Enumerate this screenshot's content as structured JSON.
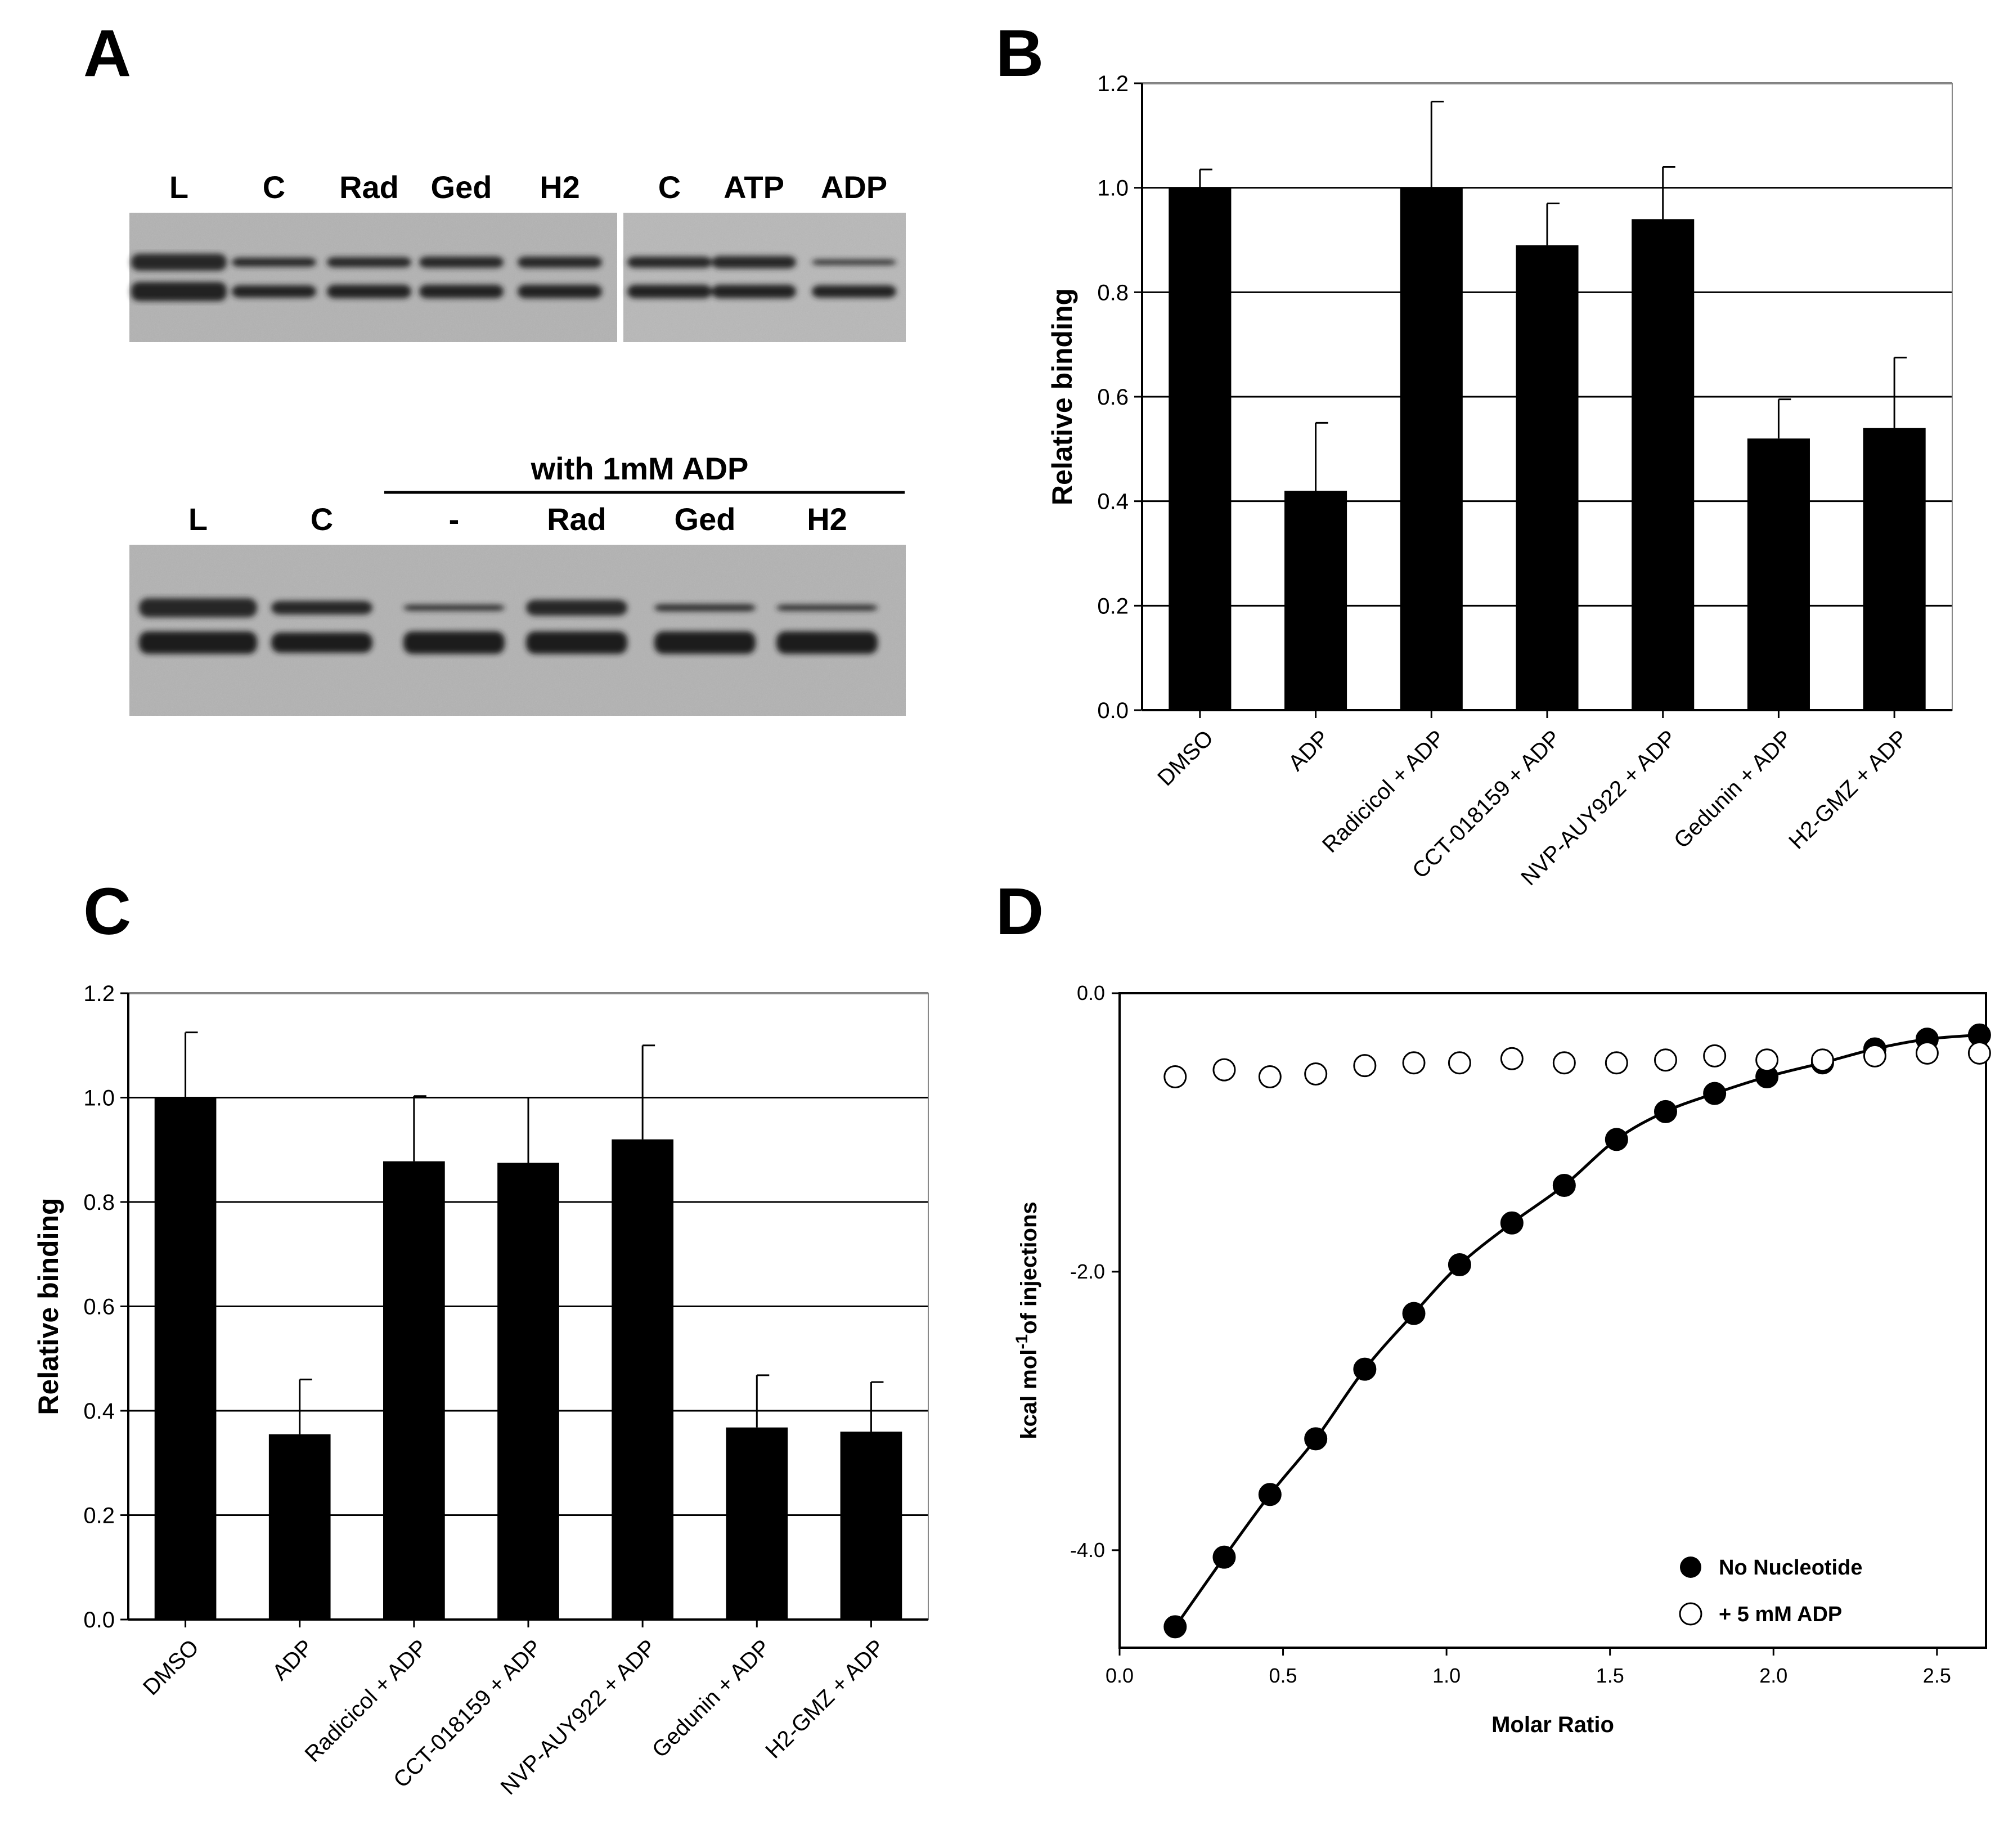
{
  "panels": {
    "A": {
      "letter": "A",
      "top_gel": {
        "lanes_left": [
          "L",
          "C",
          "Rad",
          "Ged",
          "H2"
        ],
        "lanes_right": [
          "C",
          "ATP",
          "ADP"
        ]
      },
      "bottom_gel": {
        "group_label": "with 1mM ADP",
        "lanes": [
          "L",
          "C",
          "-",
          "Rad",
          "Ged",
          "H2"
        ]
      }
    },
    "B": {
      "letter": "B"
    },
    "C": {
      "letter": "C"
    },
    "D": {
      "letter": "D"
    }
  },
  "chart_data": [
    {
      "panel": "B",
      "type": "bar",
      "ylabel": "Relative binding",
      "xlabel": "",
      "ylim": [
        0,
        1.2
      ],
      "yticks": [
        "0.0",
        "0.2",
        "0.4",
        "0.6",
        "0.8",
        "1.0",
        "1.2"
      ],
      "grid": true,
      "categories": [
        "DMSO",
        "ADP",
        "Radicicol + ADP",
        "CCT-018159 + ADP",
        "NVP-AUY922 + ADP",
        "Gedunin + ADP",
        "H2-GMZ + ADP"
      ],
      "values": [
        1.0,
        0.42,
        1.0,
        0.89,
        0.94,
        0.52,
        0.54
      ],
      "errors": [
        0.035,
        0.13,
        0.165,
        0.08,
        0.1,
        0.075,
        0.135
      ]
    },
    {
      "panel": "C",
      "type": "bar",
      "ylabel": "Relative binding",
      "xlabel": "",
      "ylim": [
        0,
        1.2
      ],
      "yticks": [
        "0.0",
        "0.2",
        "0.4",
        "0.6",
        "0.8",
        "1.0",
        "1.2"
      ],
      "grid": true,
      "categories": [
        "DMSO",
        "ADP",
        "Radicicol + ADP",
        "CCT-018159 + ADP",
        "NVP-AUY922 + ADP",
        "Gedunin + ADP",
        "H2-GMZ + ADP"
      ],
      "values": [
        1.0,
        0.355,
        0.878,
        0.875,
        0.92,
        0.368,
        0.36
      ],
      "errors": [
        0.125,
        0.105,
        0.125,
        0.125,
        0.18,
        0.1,
        0.095
      ]
    },
    {
      "panel": "D",
      "type": "scatter",
      "xlabel": "Molar Ratio",
      "ylabel_main": "kcal mol",
      "ylabel_sup": "-1",
      "ylabel_rest": "of injections",
      "xlim": [
        0,
        2.65
      ],
      "ylim": [
        -4.7,
        0
      ],
      "xticks": [
        {
          "v": 0.0,
          "t": "0.0"
        },
        {
          "v": 0.5,
          "t": "0.5"
        },
        {
          "v": 1.0,
          "t": "1.0"
        },
        {
          "v": 1.5,
          "t": "1.5"
        },
        {
          "v": 2.0,
          "t": "2.0"
        },
        {
          "v": 2.5,
          "t": "2.5"
        }
      ],
      "yticks": [
        {
          "v": 0.0,
          "t": "0.0"
        },
        {
          "v": -2.0,
          "t": "-2.0"
        },
        {
          "v": -4.0,
          "t": "-4.0"
        }
      ],
      "legend_position": "bottom-right",
      "series": [
        {
          "name": "No Nucleotide",
          "marker": "filled",
          "fit": true,
          "x": [
            0.17,
            0.32,
            0.46,
            0.6,
            0.75,
            0.9,
            1.04,
            1.2,
            1.36,
            1.52,
            1.67,
            1.82,
            1.98,
            2.15,
            2.31,
            2.47,
            2.63
          ],
          "y": [
            -4.55,
            -4.05,
            -3.6,
            -3.2,
            -2.7,
            -2.3,
            -1.95,
            -1.65,
            -1.38,
            -1.05,
            -0.85,
            -0.72,
            -0.6,
            -0.5,
            -0.4,
            -0.33,
            -0.3
          ]
        },
        {
          "name": "+ 5 mM ADP",
          "marker": "open",
          "fit": false,
          "x": [
            0.17,
            0.32,
            0.46,
            0.6,
            0.75,
            0.9,
            1.04,
            1.2,
            1.36,
            1.52,
            1.67,
            1.82,
            1.98,
            2.15,
            2.31,
            2.47,
            2.63
          ],
          "y": [
            -0.6,
            -0.55,
            -0.6,
            -0.58,
            -0.52,
            -0.5,
            -0.5,
            -0.47,
            -0.5,
            -0.5,
            -0.48,
            -0.45,
            -0.48,
            -0.48,
            -0.45,
            -0.43,
            -0.43
          ]
        }
      ]
    }
  ]
}
